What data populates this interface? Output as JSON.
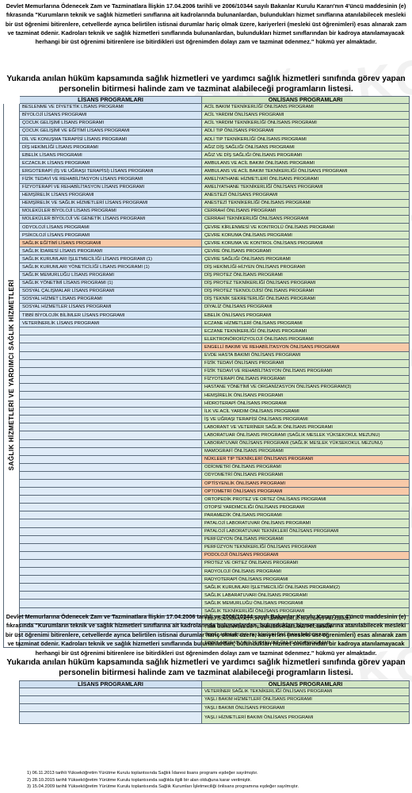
{
  "watermark_text": "SAĞLIKÇILARSEN",
  "section1": {
    "intro": "Devlet Memurlarına Ödenecek Zam ve Tazminatlara İlişkin  17.04.2006 tarihli ve 2006/10344 sayılı Bakanlar Kurulu Kararı'nın 4'üncü maddesinin (e) fıkrasında  \"Kurumların teknik ve sağlık hizmetleri sınıflarına ait kadrolarında bulunanlardan, bulundukları hizmet sınıflarına atanılabilecek mesleki bir üst öğrenimi bitirenlere, cetvellerde ayrıca belirtilen istisnai durumlar hariç olmak üzere, kariyerleri (mesleki üst öğrenimleri) esas alınarak zam ve tazminat ödenir. Kadroları teknik ve sağlık hizmetleri sınıflarında bulunanlardan, bulundukları hizmet sınıflarından bir kadroya atanılamayacak herhangi bir üst öğrenimi bitirenlere ise bitirdikleri üst öğrenimden dolayı zam ve tazminat ödenmez.\" hükmü yer almaktadır.",
    "headline": "Yukarıda anılan hüküm kapsamında sağlık hizmetleri ve yardımcı sağlık hizmetleri sınıfında görev yapan personelin bitirmesi halinde zam ve tazminat alabileceği programların listesi.",
    "col_lisans": "LİSANS PROGRAMLARI",
    "col_onlisans": "ÖNLİSANS PROGRAMLARI",
    "vertical_label": "SAĞLIK HİZMETLERİ VE YARDIMCI SAĞLIK HİZMETLERİ",
    "lisans": [
      "BESLENME VE DİYETETİK LİSANS PROGRAMI",
      "BİYOLOJİ LİSANS PROGRAMI",
      "ÇOCUK GELİŞİMİ LİSANS PROGRAMI",
      "ÇOCUK GELİŞİMİ VE EĞİTİMİ LİSANS PROGRAMI",
      "DİL VE KONUŞMA TERAPİSİ LİSANS PROGRAMI",
      "DİŞ HEKİMLİĞİ LİSANS PROGRAMI",
      "EBELİK LİSANS PROGRAMI",
      "ECZACILIK LİSANS PROGRAMI",
      "ERGOTERAPİ (İŞ VE UĞRAŞI TERAPİSİ) LİSANS PROGRAMI",
      "FİZİK TEDAVİ VE REHABİLİTASYON LİSANS PROGRAMI",
      "FİZYOTERAPİ VE REHABİLİTASYON LİSANS PROGRAMI",
      "HEMŞİRELİK LİSANS PROGRAMI",
      "HEMŞİRELİK VE SAĞLIK HİZMETLERİ LİSANS PROGRAMI",
      "MOLEKÜLER BİYOLOJİ LİSANS PROGRAMI",
      "MOLEKÜLER BİYOLOJİ VE GENETİK LİSANS PROGRAMI",
      "ODYOLOJİ LİSANS PROGRAMI",
      "PSİKOLOJİ LİSANS PROGRAMI",
      "SAĞLIK EĞİTİMİ LİSANS PROGRAMI",
      "SAĞLIK İDARESİ LİSANS PROGRAMI",
      "SAĞLIK KURUMLARI İŞLETMECİLİĞİ LİSANS PROGRAMI (1)",
      "SAĞLIK KURUMLARI YÖNETİCİLİĞİ LİSANS PROGRAMI (1)",
      "SAĞLIK MEMURLUĞU LİSANS PROGRAMI",
      "SAĞLIK YÖNETİMİ LİSANS PROGRAMI (1)",
      "SOSYAL ÇALIŞMALAR LİSANS PROGRAMI",
      "SOSYAL HİZMET LİSANS PROGRAMI",
      "SOSYAL HİZMETLER LİSANS PROGRAMI",
      "TIBBİ BİYOLOJİK BİLİMLER LİSANS PROGRAMI",
      "VETERİNERLİK LİSANS PROGRAMI"
    ],
    "onlisans": [
      "ACİL BAKIM TEKNİKERLİĞİ ÖNLİSANS PROGRAMI",
      "ACİL YARDIM ÖNLİSANS PROGRAMI",
      "ACİL YARDIM TEKNİKERLİĞİ ÖNLİSANS PROGRAMI",
      "ADLİ TIP ÖNLİSANS PROGRAMI",
      "ADLİ TIP TEKNİKERLİĞİ ÖNLİSANS PROGRAMI",
      "AĞIZ DİŞ SAĞLIĞI ÖNLİSANS PROGRAMI",
      "AĞIZ VE DİŞ SAĞLIĞI ÖNLİSANS PROGRAMI",
      "AMBULANS VE ACİL BAKIM ÖNLİSANS PROGRAMI",
      "AMBULANS VE ACİL BAKIM TEKNİKERLİĞİ ÖNLİSANS PROGRAMI",
      "AMELİYATHANE HİZMETLERİ ÖNLİSANS PROGRAMI",
      "AMELİYATHANE TEKNİKERLİĞİ ÖNLİSANS PROGRAMI",
      "ANESTEZİ ÖNLİSANS PROGRAMI",
      "ANESTEZİ TEKNİKERLİĞİ ÖNLİSANS PROGRAMI",
      "CERRAHİ ÖNLİSANS PROGRAMI",
      "CERRAHİ TEKNİKERLİĞİ ÖNLİSANS PROGRAMI",
      "ÇEVRE KİRLENMESİ VE KONTROLÜ ÖNLİSANS PROGRAMI",
      "ÇEVRE KORUMA ÖNLİSANS PROGRAMI",
      "ÇEVRE KORUMA VE KONTROL ÖNLİSANS PROGRAMI",
      "ÇEVRE ÖNLİSANS PROGRAMI",
      "ÇEVRE SAĞLIĞI ÖNLİSANS PROGRAMI",
      "DİŞ HEKİMLİĞİ-HİJYEN ÖNLİSANS PROGRAMI",
      "DİŞ PROTEZ ÖNLİSANS PROGRAMI",
      "DİŞ PROTEZ TEKNİKERLİĞİ ÖNLİSANS PROGRAMI",
      "DİŞ PROTEZ TEKNOLOJİSİ ÖNLİSANS PROGRAMI",
      "DİŞ TEKNİK SEKRETERLİĞİ ÖNLİSANS PROGRAMI",
      "DİYALİZ ÖNLİSANS PROGRAMI",
      "EBELİK ÖNLİSANS PROGRAMI",
      "ECZANE HİZMETLERİ ÖNLİSANS PROGRAMI",
      "ECZANE TEKNİKERLİĞİ ÖNLİSANS PROGRAMI",
      "ELEKTRONÖROFİZYOLOJİ ÖNLİSANS PROGRAMI",
      "ENGELLİ BAKIMI VE REHABİLİTASYON ÖNLİSANS PROGRAMI",
      "EVDE HASTA BAKIMI ÖNLİSANS PROGRAMI",
      "FİZİK TEDAVİ ÖNLİSANS PROGRAMI",
      "FİZİK TEDAVİ VE REHABİLİTASYON ÖNLİSANS PROGRAMI",
      "FİZYOTERAPİ ÖNLİSANS PROGRAMI",
      "HASTANE YÖNETİMİ VE ORGANİZASYON ÖNLİSANS PROGRAMI(3)",
      "HEMŞİRELİK ÖNLİSANS PROGRAMI",
      "HİDROTERAPİ ÖNLİSANS PROGRAMI",
      "İLK VE ACİL YARDIM ÖNLİSANS PROGRAMI",
      "İŞ VE UĞRAŞI TERAPİSİ ÖNLİSANS PROGRAMI",
      "LABORANT VE VETERİNER SAĞLIK ÖNLİSANS PROGRAMI",
      "LABORATUAR ÖNLİSANS PROGRAMI (SAĞLIK MESLEK YÜKSEKOKUL MEZUNU)",
      "LABORATUVAR ÖNLİSANS PROGRAMI (SAĞLIK MESLEK YÜKSEKOKUL MEZUNU)",
      "MAMOGRAFİ ÖNLİSANS PROGRAMI",
      "NÜKLEER TIP TEKNİKLERİ ÖNLİSANS PROGRAMI",
      "ODİOMETRİ  ÖNLİSANS PROGRAMI",
      "ODYOMETRİ ÖNLİSANS PROGRAMI",
      "OPTİSYENLİK ÖNLİSANS PROGRAMI",
      "OPTOMETRİ ÖNLİSANS PROGRAMI",
      "ORTOPEDİK PROTEZ VE ORTEZ ÖNLİSANS PROGRAMI",
      "OTOPSİ YARDIMCILIĞI ÖNLİSANS PROGRAMI",
      "PARAMEDİK ÖNLİSANS PROGRAMI",
      "PATALOJİ LABORATUVAR ÖNLİSANS PROGRAMI",
      "PATALOJİ LABORATUVAR TEKNİKLERİ ÖNLİSANS PROGRAMI",
      "PERFÜZYON ÖNLİSANS PROGRAMI",
      "PERFÜZYON TEKNİKERLİĞİ ÖNLİSANS PROGRAMI",
      "PODOLOJİ ÖNLİSANS PROGRAMI",
      "PROTEZ VE ORTEZ ÖNLİSANS PROGRAMI",
      "RADYOLOJİ ÖNLİSANS PROGRAMI",
      "RADYOTERAPİ ÖNLİSANS PROGRAMI",
      "SAĞLIK KURUMLARI İŞLETMECİLİĞİ ÖNLİSANS PROGRAMI(2)",
      "SAĞLIK LABARATUVARI ÖNLİSANS PROGRAMI",
      "SAĞLIK MEMURLUĞU ÖNLİSANS PROGRAMI",
      "SAĞLIK TEKNİKERLİĞİ ÖNLİSANS PROGRAMI",
      "TIBBİ DÖKÜMANTASYON VE SEKRETERLİK ÖNLİSANS PROGRAMI",
      "TIBBİ GÖRÜNTÜLEME TEKNİKLERİ ÖNLİSANS PROGRAMI",
      "TIBBİ LABORATUAR TEKNİKLERİ ÖNLİSANS PROGRAMI",
      "TIBBİ LABORATUVAR TEKNİKLERİ ÖNLİSANS PROGRAMI"
    ],
    "highlight_color": "#f8c9a8"
  },
  "section2": {
    "intro": "Devlet Memurlarına Ödenecek Zam ve Tazminatlara İlişkin  17.04.2006 tarihli ve 2006/10344 sayılı Bakanlar Kurulu Kararı'nın 4'üncü maddesinin (e) fıkrasında  \"Kurumların teknik ve sağlık hizmetleri sınıflarına ait kadrolarında bulunanlardan, bulundukları hizmet sınıflarına atanılabilecek mesleki bir üst öğrenimi bitirenlere, cetvellerde ayrıca belirtilen istisnai durumlar hariç olmak üzere, kariyerleri (mesleki üst öğrenimleri) esas alınarak zam ve tazminat ödenir. Kadroları teknik ve sağlık hizmetleri sınıflarında bulunanlardan, bulundukları hizmet sınıflarından bir kadroya atanılamayacak herhangi bir üst öğrenimi bitirenlere ise bitirdikleri üst öğrenimden dolayı zam ve tazminat ödenmez.\" hükmü yer almaktadır.",
    "headline": "Yukarıda anılan hüküm kapsamında sağlık hizmetleri ve yardımcı sağlık hizmetleri sınıfında görev yapan personelin bitirmesi halinde zam ve tazminat alabileceği programların listesi.",
    "col_lisans": "LİSANS PROGRAMLARI",
    "col_onlisans": "ÖNLİSANS PROGRAMLARI",
    "onlisans": [
      "VETERİNER SAĞLIK TEKNİKERLİĞİ ÖNLİSANS PROGRAMI",
      "YAŞLI BAKIM HİZMETLERİ ÖNLİSANS PROGRAMI",
      "YAŞLI BAKIMI ÖNLİSANS PROGRAMI",
      "YAŞLI HİZMETLERİ BAKIMI ÖNLİSANS PROGRAMI"
    ]
  },
  "footnotes": [
    "1) 06.11.2013 tarihli Yükseköğretim Yürütme Kurulu toplantısında Sağlık İdaresi lisans programı eşdeğer sayılmıştır.",
    "2) 28.10.2015 tarihli Yükseköğretim Yürütme Kurulu toplantısında sağlıkla ilgili bir alan olduğuna karar verilmiştir.",
    "3) 15.04.2009 tarihli Yükseköğretim Yürütme Kurulu toplantısında Sağlık Kurumları İşletmeciliği önlisans programına eşdeğer sayılmıştır."
  ]
}
